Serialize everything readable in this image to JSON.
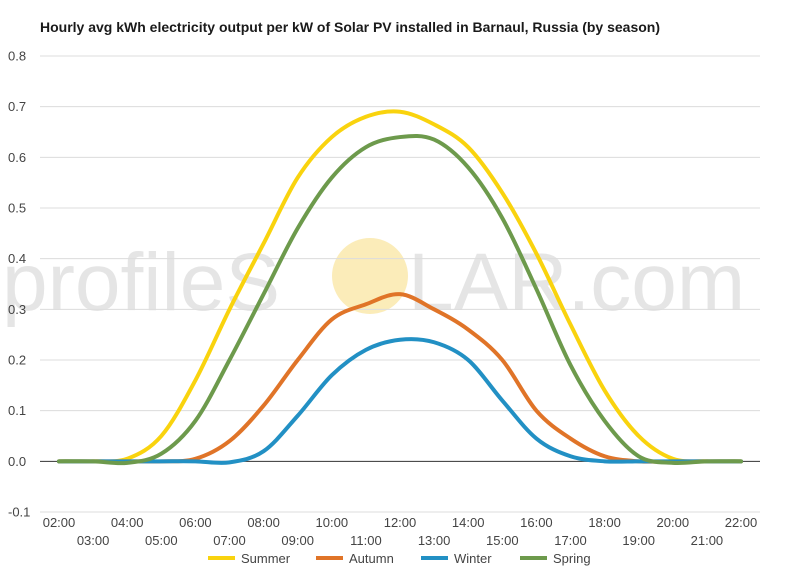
{
  "title": "Hourly avg kWh electricity output per kW of Solar PV installed in Barnaul, Russia (by season)",
  "watermark": {
    "left": "profileS",
    "right": "LAR.com",
    "sun_color": "#f8e08a",
    "text_color": "#d0d0d0"
  },
  "chart_data": {
    "type": "line",
    "title": "Hourly avg kWh electricity output per kW of Solar PV installed in Barnaul, Russia (by season)",
    "xlabel": "",
    "ylabel": "",
    "ylim": [
      -0.1,
      0.8
    ],
    "yticks": [
      "-0.1",
      "0.0",
      "0.1",
      "0.2",
      "0.3",
      "0.4",
      "0.5",
      "0.6",
      "0.7",
      "0.8"
    ],
    "grid": true,
    "legend": "bottom",
    "categories": [
      "02:00",
      "03:00",
      "04:00",
      "05:00",
      "06:00",
      "07:00",
      "08:00",
      "09:00",
      "10:00",
      "11:00",
      "12:00",
      "13:00",
      "14:00",
      "15:00",
      "16:00",
      "17:00",
      "18:00",
      "19:00",
      "20:00",
      "21:00",
      "22:00"
    ],
    "series": [
      {
        "name": "Summer",
        "color": "#f9d30e",
        "values": [
          0.0,
          0.0,
          0.005,
          0.05,
          0.16,
          0.3,
          0.43,
          0.56,
          0.64,
          0.68,
          0.69,
          0.665,
          0.62,
          0.53,
          0.41,
          0.27,
          0.14,
          0.05,
          0.005,
          0.0,
          0.0
        ]
      },
      {
        "name": "Autumn",
        "color": "#e07428",
        "values": [
          0.0,
          0.0,
          0.0,
          0.0,
          0.005,
          0.04,
          0.11,
          0.2,
          0.28,
          0.31,
          0.33,
          0.3,
          0.26,
          0.2,
          0.1,
          0.045,
          0.01,
          0.0,
          0.0,
          0.0,
          0.0
        ]
      },
      {
        "name": "Winter",
        "color": "#2290c4",
        "values": [
          0.0,
          0.0,
          0.0,
          0.0,
          0.0,
          -0.002,
          0.02,
          0.09,
          0.17,
          0.22,
          0.24,
          0.235,
          0.2,
          0.12,
          0.045,
          0.01,
          0.0,
          0.0,
          0.0,
          0.0,
          0.0
        ]
      },
      {
        "name": "Spring",
        "color": "#6d9a4c",
        "values": [
          0.0,
          0.0,
          -0.003,
          0.015,
          0.08,
          0.2,
          0.33,
          0.46,
          0.56,
          0.62,
          0.64,
          0.635,
          0.58,
          0.48,
          0.34,
          0.19,
          0.08,
          0.01,
          -0.003,
          0.0,
          0.0
        ]
      }
    ]
  }
}
